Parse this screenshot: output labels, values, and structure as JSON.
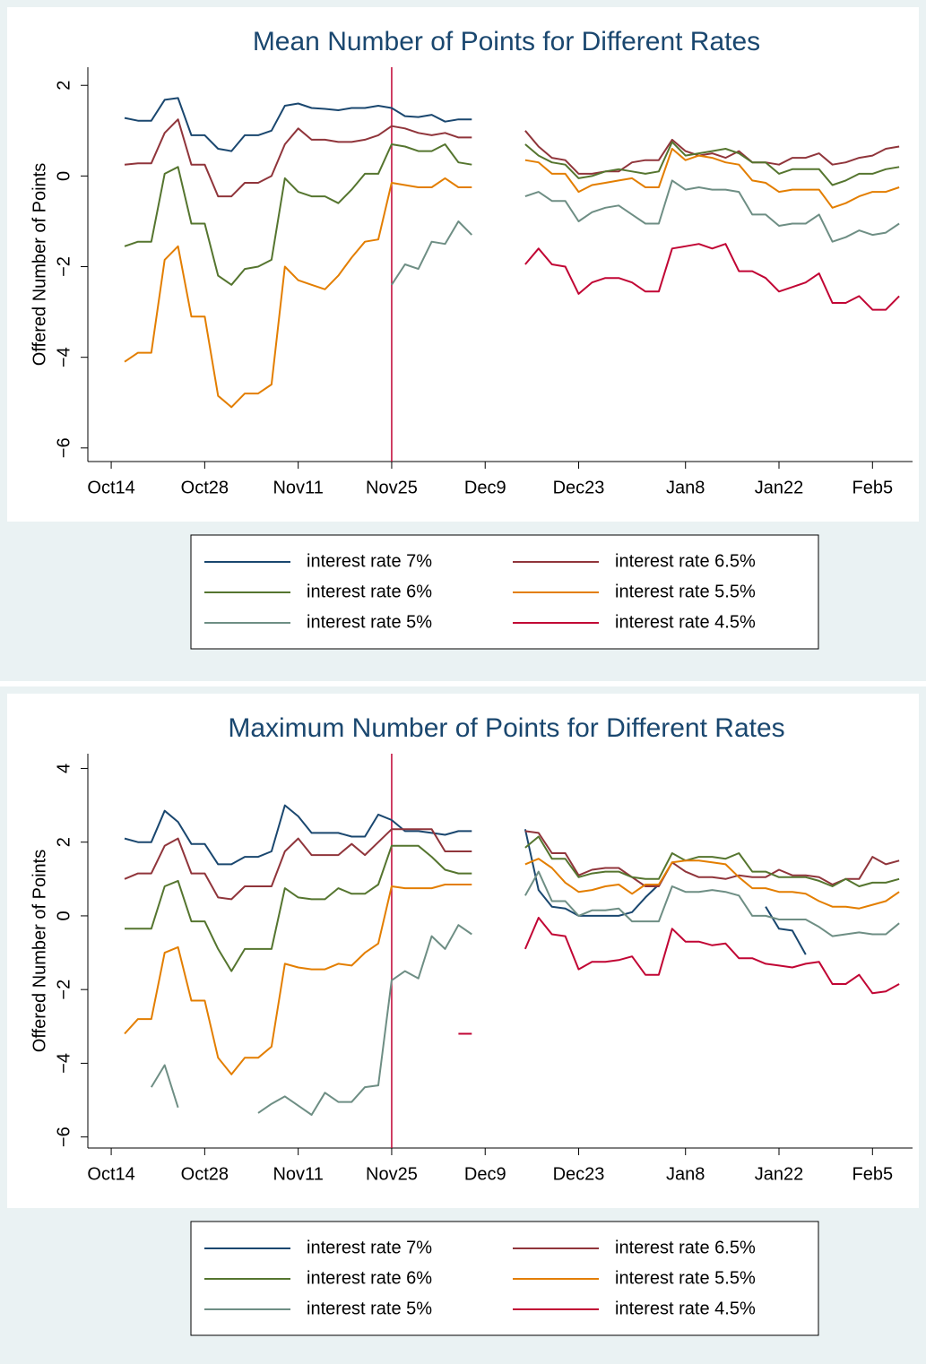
{
  "chart_data": [
    {
      "type": "line",
      "title": "Mean Number of Points for Different Rates",
      "y_label": "Offered Number of Points",
      "x": [
        2,
        4,
        6,
        8,
        10,
        12,
        14,
        16,
        18,
        20,
        22,
        24,
        26,
        28,
        30,
        32,
        34,
        36,
        38,
        40,
        42,
        44,
        46,
        48,
        50,
        52,
        54,
        58,
        62,
        64,
        66,
        68,
        70,
        72,
        74,
        76,
        78,
        80,
        82,
        84,
        86,
        88,
        90,
        92,
        94,
        96,
        98,
        100,
        102,
        104,
        106,
        108,
        110,
        112,
        114,
        116,
        118
      ],
      "xlim": [
        -3.5,
        120
      ],
      "xticks": [
        {
          "value": 0,
          "label": "Oct14"
        },
        {
          "value": 14,
          "label": "Oct28"
        },
        {
          "value": 28,
          "label": "Nov11"
        },
        {
          "value": 42,
          "label": "Nov25"
        },
        {
          "value": 56,
          "label": "Dec9"
        },
        {
          "value": 70,
          "label": "Dec23"
        },
        {
          "value": 86,
          "label": "Jan8"
        },
        {
          "value": 100,
          "label": "Jan22"
        },
        {
          "value": 114,
          "label": "Feb5"
        }
      ],
      "ylim": [
        -6.3,
        2.4
      ],
      "yticks": [
        {
          "value": -6,
          "label": "−6"
        },
        {
          "value": -4,
          "label": "−4"
        },
        {
          "value": -2,
          "label": "−2"
        },
        0,
        2
      ],
      "vline_x": 42,
      "vline_color": "#c10534",
      "series": [
        {
          "name": "interest rate 7%",
          "color": "#1a476f",
          "values": [
            1.28,
            1.22,
            1.22,
            1.68,
            1.72,
            0.9,
            0.9,
            0.6,
            0.55,
            0.9,
            0.9,
            1.0,
            1.55,
            1.6,
            1.5,
            1.48,
            1.45,
            1.5,
            1.5,
            1.55,
            1.5,
            1.32,
            1.3,
            1.35,
            1.2,
            1.25,
            1.25,
            null,
            null,
            null,
            null,
            null,
            null,
            null,
            null,
            null,
            null,
            null,
            null,
            null,
            null,
            null,
            null,
            null,
            null,
            null,
            null,
            null,
            null,
            null,
            null,
            null,
            null,
            null,
            null,
            null,
            null
          ]
        },
        {
          "name": "interest rate 6.5%",
          "color": "#90353b",
          "values": [
            0.25,
            0.28,
            0.28,
            0.95,
            1.25,
            0.25,
            0.25,
            -0.45,
            -0.45,
            -0.15,
            -0.15,
            0,
            0.7,
            1.05,
            0.8,
            0.8,
            0.75,
            0.75,
            0.8,
            0.9,
            1.1,
            1.05,
            0.95,
            0.9,
            0.95,
            0.85,
            0.85,
            null,
            1.0,
            0.65,
            0.4,
            0.35,
            0.05,
            0.05,
            0.1,
            0.1,
            0.3,
            0.35,
            0.35,
            0.8,
            0.55,
            0.45,
            0.5,
            0.4,
            0.55,
            0.3,
            0.3,
            0.25,
            0.4,
            0.4,
            0.5,
            0.25,
            0.3,
            0.4,
            0.45,
            0.6,
            0.65
          ]
        },
        {
          "name": "interest rate 6%",
          "color": "#55752f",
          "values": [
            -1.55,
            -1.45,
            -1.45,
            0.05,
            0.2,
            -1.05,
            -1.05,
            -2.2,
            -2.4,
            -2.05,
            -2.0,
            -1.85,
            -0.05,
            -0.35,
            -0.45,
            -0.45,
            -0.6,
            -0.3,
            0.05,
            0.05,
            0.7,
            0.65,
            0.55,
            0.55,
            0.7,
            0.3,
            0.25,
            null,
            0.7,
            0.45,
            0.3,
            0.25,
            -0.05,
            0,
            0.1,
            0.15,
            0.1,
            0.05,
            0.1,
            0.75,
            0.45,
            0.5,
            0.55,
            0.6,
            0.5,
            0.3,
            0.3,
            0.05,
            0.15,
            0.15,
            0.15,
            -0.2,
            -0.1,
            0.05,
            0.05,
            0.15,
            0.2
          ]
        },
        {
          "name": "interest rate 5.5%",
          "color": "#e37e00",
          "values": [
            -4.1,
            -3.9,
            -3.9,
            -1.85,
            -1.55,
            -3.1,
            -3.1,
            -4.85,
            -5.1,
            -4.8,
            -4.8,
            -4.6,
            -2.0,
            -2.3,
            -2.4,
            -2.5,
            -2.2,
            -1.8,
            -1.45,
            -1.4,
            -0.15,
            -0.2,
            -0.25,
            -0.25,
            -0.05,
            -0.25,
            -0.25,
            null,
            0.35,
            0.3,
            0.05,
            0.05,
            -0.35,
            -0.2,
            -0.15,
            -0.1,
            -0.05,
            -0.25,
            -0.25,
            0.6,
            0.35,
            0.45,
            0.4,
            0.3,
            0.25,
            -0.1,
            -0.15,
            -0.35,
            -0.3,
            -0.3,
            -0.3,
            -0.7,
            -0.6,
            -0.45,
            -0.35,
            -0.35,
            -0.25
          ]
        },
        {
          "name": "interest rate 5%",
          "color": "#6e8e84",
          "values": [
            null,
            null,
            null,
            null,
            null,
            null,
            null,
            null,
            null,
            null,
            null,
            null,
            null,
            null,
            null,
            null,
            null,
            null,
            null,
            null,
            -2.4,
            -1.95,
            -2.05,
            -1.45,
            -1.5,
            -1.0,
            -1.3,
            null,
            -0.45,
            -0.35,
            -0.55,
            -0.55,
            -1.0,
            -0.8,
            -0.7,
            -0.65,
            -0.85,
            -1.05,
            -1.05,
            -0.1,
            -0.3,
            -0.25,
            -0.3,
            -0.3,
            -0.35,
            -0.85,
            -0.85,
            -1.1,
            -1.05,
            -1.05,
            -0.85,
            -1.45,
            -1.35,
            -1.2,
            -1.3,
            -1.25,
            -1.05
          ]
        },
        {
          "name": "interest rate 4.5%",
          "color": "#c10534",
          "values": [
            null,
            null,
            null,
            null,
            null,
            null,
            null,
            null,
            null,
            null,
            null,
            null,
            null,
            null,
            null,
            null,
            null,
            null,
            null,
            null,
            null,
            null,
            null,
            null,
            null,
            null,
            null,
            null,
            -1.95,
            -1.6,
            -1.95,
            -2.0,
            -2.6,
            -2.35,
            -2.25,
            -2.25,
            -2.35,
            -2.55,
            -2.55,
            -1.6,
            -1.55,
            -1.5,
            -1.6,
            -1.5,
            -2.1,
            -2.1,
            -2.25,
            -2.55,
            -2.45,
            -2.35,
            -2.15,
            -2.8,
            -2.8,
            -2.65,
            -2.95,
            -2.95,
            -2.65
          ]
        }
      ]
    },
    {
      "type": "line",
      "title": "Maximum Number of Points for Different Rates",
      "y_label": "Offered Number of Points",
      "x": [
        2,
        4,
        6,
        8,
        10,
        12,
        14,
        16,
        18,
        20,
        22,
        24,
        26,
        28,
        30,
        32,
        34,
        36,
        38,
        40,
        42,
        44,
        46,
        48,
        50,
        52,
        54,
        58,
        62,
        64,
        66,
        68,
        70,
        72,
        74,
        76,
        78,
        80,
        82,
        84,
        86,
        88,
        90,
        92,
        94,
        96,
        98,
        100,
        102,
        104,
        106,
        108,
        110,
        112,
        114,
        116,
        118
      ],
      "xlim": [
        -3.5,
        120
      ],
      "xticks": [
        {
          "value": 0,
          "label": "Oct14"
        },
        {
          "value": 14,
          "label": "Oct28"
        },
        {
          "value": 28,
          "label": "Nov11"
        },
        {
          "value": 42,
          "label": "Nov25"
        },
        {
          "value": 56,
          "label": "Dec9"
        },
        {
          "value": 70,
          "label": "Dec23"
        },
        {
          "value": 86,
          "label": "Jan8"
        },
        {
          "value": 100,
          "label": "Jan22"
        },
        {
          "value": 114,
          "label": "Feb5"
        }
      ],
      "ylim": [
        -6.3,
        4.4
      ],
      "yticks": [
        {
          "value": -6,
          "label": "−6"
        },
        {
          "value": -4,
          "label": "−4"
        },
        {
          "value": -2,
          "label": "−2"
        },
        0,
        2,
        4
      ],
      "vline_x": 42,
      "vline_color": "#c10534",
      "series": [
        {
          "name": "interest rate 7%",
          "color": "#1a476f",
          "values": [
            2.1,
            2.0,
            2.0,
            2.85,
            2.55,
            1.95,
            1.95,
            1.4,
            1.4,
            1.6,
            1.6,
            1.75,
            3.0,
            2.7,
            2.25,
            2.25,
            2.25,
            2.15,
            2.15,
            2.75,
            2.6,
            2.3,
            2.3,
            2.25,
            2.2,
            2.3,
            2.3,
            null,
            2.35,
            0.7,
            0.25,
            0.2,
            0,
            0,
            0,
            0,
            0.1,
            0.5,
            0.85,
            null,
            null,
            null,
            null,
            null,
            null,
            null,
            0.25,
            -0.35,
            -0.4,
            -1.05,
            null,
            null,
            null,
            null,
            null,
            null,
            null
          ]
        },
        {
          "name": "interest rate 6.5%",
          "color": "#90353b",
          "values": [
            1.0,
            1.15,
            1.15,
            1.9,
            2.1,
            1.15,
            1.15,
            0.5,
            0.45,
            0.8,
            0.8,
            0.8,
            1.75,
            2.1,
            1.65,
            1.65,
            1.65,
            1.95,
            1.65,
            2.0,
            2.35,
            2.35,
            2.35,
            2.35,
            1.75,
            1.75,
            1.75,
            null,
            2.3,
            2.25,
            1.7,
            1.7,
            1.1,
            1.25,
            1.3,
            1.3,
            1.05,
            0.8,
            0.8,
            1.45,
            1.2,
            1.05,
            1.05,
            1.0,
            1.1,
            1.05,
            1.05,
            1.25,
            1.1,
            1.1,
            1.05,
            0.85,
            1.0,
            1.0,
            1.6,
            1.4,
            1.5
          ]
        },
        {
          "name": "interest rate 6%",
          "color": "#55752f",
          "values": [
            -0.35,
            -0.35,
            -0.35,
            0.8,
            0.95,
            -0.15,
            -0.15,
            -0.9,
            -1.5,
            -0.9,
            -0.9,
            -0.9,
            0.75,
            0.5,
            0.45,
            0.45,
            0.75,
            0.6,
            0.6,
            0.85,
            1.9,
            1.9,
            1.9,
            1.6,
            1.25,
            1.15,
            1.15,
            null,
            1.85,
            2.15,
            1.55,
            1.55,
            1.05,
            1.15,
            1.2,
            1.2,
            1.05,
            1.0,
            1.0,
            1.7,
            1.5,
            1.6,
            1.6,
            1.55,
            1.7,
            1.2,
            1.2,
            1.05,
            1.05,
            1.05,
            0.95,
            0.8,
            1.0,
            0.8,
            0.9,
            0.9,
            1.0
          ]
        },
        {
          "name": "interest rate 5.5%",
          "color": "#e37e00",
          "values": [
            -3.2,
            -2.8,
            -2.8,
            -1.0,
            -0.85,
            -2.3,
            -2.3,
            -3.85,
            -4.3,
            -3.85,
            -3.85,
            -3.55,
            -1.3,
            -1.4,
            -1.45,
            -1.45,
            -1.3,
            -1.35,
            -1.0,
            -0.75,
            0.8,
            0.75,
            0.75,
            0.75,
            0.85,
            0.85,
            0.85,
            null,
            1.4,
            1.55,
            1.3,
            0.9,
            0.65,
            0.7,
            0.8,
            0.85,
            0.6,
            0.85,
            0.85,
            1.45,
            1.5,
            1.5,
            1.45,
            1.4,
            1.05,
            0.75,
            0.75,
            0.65,
            0.65,
            0.6,
            0.4,
            0.25,
            0.25,
            0.2,
            0.3,
            0.4,
            0.65
          ]
        },
        {
          "name": "interest rate 5%",
          "color": "#6e8e84",
          "values": [
            null,
            null,
            -4.65,
            -4.05,
            -5.2,
            null,
            null,
            null,
            null,
            null,
            -5.35,
            -5.1,
            -4.9,
            -5.15,
            -5.4,
            -4.8,
            -5.05,
            -5.05,
            -4.65,
            -4.6,
            -1.75,
            -1.5,
            -1.7,
            -0.55,
            -0.9,
            -0.25,
            -0.5,
            null,
            0.55,
            1.2,
            0.4,
            0.4,
            0,
            0.15,
            0.15,
            0.2,
            -0.15,
            -0.15,
            -0.15,
            0.8,
            0.65,
            0.65,
            0.7,
            0.65,
            0.55,
            0,
            0,
            -0.1,
            -0.1,
            -0.1,
            -0.3,
            -0.55,
            -0.5,
            -0.45,
            -0.5,
            -0.5,
            -0.2
          ]
        },
        {
          "name": "interest rate 4.5%",
          "color": "#c10534",
          "values": [
            null,
            null,
            null,
            null,
            null,
            null,
            null,
            null,
            null,
            null,
            null,
            null,
            null,
            null,
            null,
            null,
            null,
            null,
            null,
            null,
            null,
            null,
            null,
            null,
            null,
            -3.2,
            -3.2,
            null,
            -0.9,
            -0.05,
            -0.5,
            -0.55,
            -1.45,
            -1.25,
            -1.25,
            -1.2,
            -1.1,
            -1.6,
            -1.6,
            -0.35,
            -0.7,
            -0.7,
            -0.8,
            -0.75,
            -1.15,
            -1.15,
            -1.3,
            -1.35,
            -1.4,
            -1.3,
            -1.25,
            -1.85,
            -1.85,
            -1.6,
            -2.1,
            -2.05,
            -1.85
          ]
        }
      ]
    }
  ]
}
